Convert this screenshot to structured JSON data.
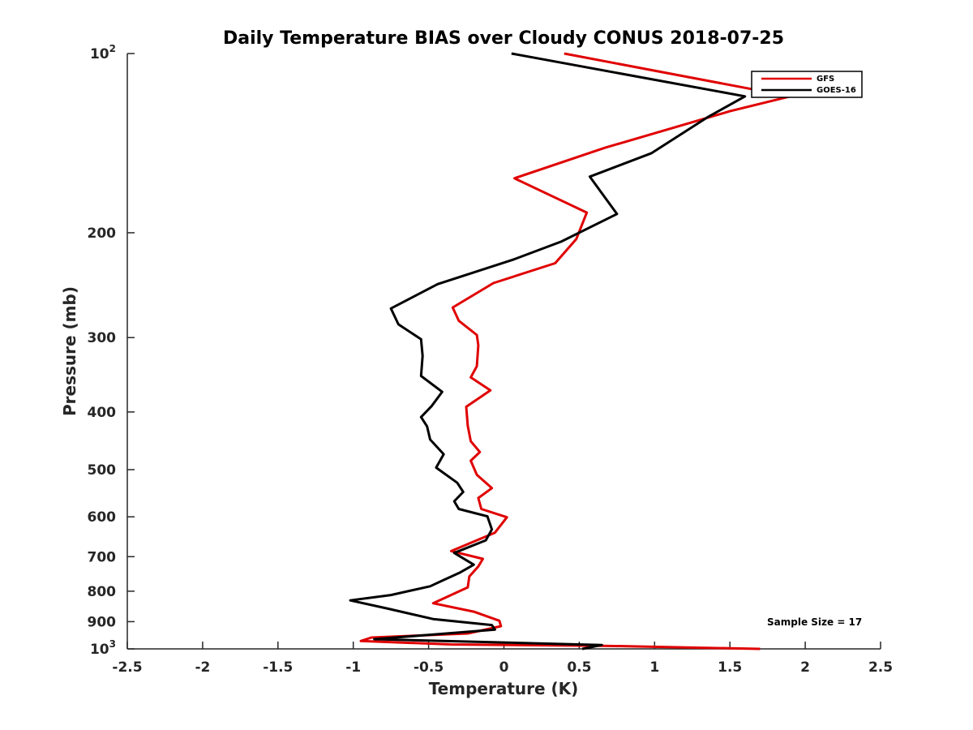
{
  "chart_data": {
    "type": "line",
    "title": "Daily Temperature BIAS over Cloudy CONUS 2018-07-25",
    "xlabel": "Temperature (K)",
    "ylabel": "Pressure (mb)",
    "xlim": [
      -2.5,
      2.5
    ],
    "ylim": [
      100,
      1000
    ],
    "y_scale": "log",
    "y_reversed": true,
    "grid": false,
    "legend_position": "top-right",
    "x_ticks": [
      {
        "value": -2.5,
        "label": "-2.5"
      },
      {
        "value": -2,
        "label": "-2"
      },
      {
        "value": -1.5,
        "label": "-1.5"
      },
      {
        "value": -1,
        "label": "-1"
      },
      {
        "value": -0.5,
        "label": "-0.5"
      },
      {
        "value": 0,
        "label": "0"
      },
      {
        "value": 0.5,
        "label": "0.5"
      },
      {
        "value": 1,
        "label": "1"
      },
      {
        "value": 1.5,
        "label": "1.5"
      },
      {
        "value": 2,
        "label": "2"
      },
      {
        "value": 2.5,
        "label": "2.5"
      }
    ],
    "y_ticks": [
      {
        "value": 100,
        "label": "10",
        "sup": "2"
      },
      {
        "value": 200,
        "label": "200",
        "sup": ""
      },
      {
        "value": 300,
        "label": "300",
        "sup": ""
      },
      {
        "value": 400,
        "label": "400",
        "sup": ""
      },
      {
        "value": 500,
        "label": "500",
        "sup": ""
      },
      {
        "value": 600,
        "label": "600",
        "sup": ""
      },
      {
        "value": 700,
        "label": "700",
        "sup": ""
      },
      {
        "value": 800,
        "label": "800",
        "sup": ""
      },
      {
        "value": 900,
        "label": "900",
        "sup": ""
      },
      {
        "value": 1000,
        "label": "10",
        "sup": "3"
      }
    ],
    "series": [
      {
        "name": "GFS",
        "color": "#e00000",
        "points": [
          [
            0.4,
            100
          ],
          [
            1.9,
            118
          ],
          [
            1.5,
            125
          ],
          [
            0.67,
            144
          ],
          [
            0.07,
            162
          ],
          [
            0.55,
            185
          ],
          [
            0.48,
            205
          ],
          [
            0.34,
            225
          ],
          [
            -0.07,
            243
          ],
          [
            -0.34,
            267
          ],
          [
            -0.3,
            281
          ],
          [
            -0.18,
            297
          ],
          [
            -0.17,
            309
          ],
          [
            -0.18,
            335
          ],
          [
            -0.22,
            350
          ],
          [
            -0.09,
            368
          ],
          [
            -0.25,
            392
          ],
          [
            -0.24,
            422
          ],
          [
            -0.22,
            448
          ],
          [
            -0.16,
            467
          ],
          [
            -0.22,
            483
          ],
          [
            -0.18,
            510
          ],
          [
            -0.08,
            537
          ],
          [
            -0.17,
            558
          ],
          [
            -0.15,
            582
          ],
          [
            0.02,
            601
          ],
          [
            -0.06,
            638
          ],
          [
            -0.35,
            685
          ],
          [
            -0.14,
            706
          ],
          [
            -0.17,
            727
          ],
          [
            -0.23,
            756
          ],
          [
            -0.24,
            788
          ],
          [
            -0.47,
            838
          ],
          [
            -0.2,
            866
          ],
          [
            -0.03,
            897
          ],
          [
            -0.02,
            916
          ],
          [
            -0.24,
            942
          ],
          [
            -0.88,
            957
          ],
          [
            -0.95,
            970
          ],
          [
            -0.35,
            983
          ],
          [
            0.66,
            988
          ],
          [
            1.7,
            1000
          ]
        ]
      },
      {
        "name": "GOES-16",
        "color": "#000000",
        "points": [
          [
            0.05,
            100
          ],
          [
            1.6,
            118
          ],
          [
            1.35,
            128
          ],
          [
            0.98,
            147
          ],
          [
            0.57,
            161
          ],
          [
            0.75,
            186
          ],
          [
            0.38,
            207
          ],
          [
            0.06,
            222
          ],
          [
            -0.44,
            244
          ],
          [
            -0.75,
            268
          ],
          [
            -0.7,
            285
          ],
          [
            -0.55,
            302
          ],
          [
            -0.54,
            322
          ],
          [
            -0.55,
            348
          ],
          [
            -0.41,
            370
          ],
          [
            -0.48,
            391
          ],
          [
            -0.55,
            408
          ],
          [
            -0.51,
            423
          ],
          [
            -0.49,
            445
          ],
          [
            -0.4,
            471
          ],
          [
            -0.45,
            496
          ],
          [
            -0.31,
            526
          ],
          [
            -0.27,
            545
          ],
          [
            -0.33,
            565
          ],
          [
            -0.3,
            582
          ],
          [
            -0.11,
            599
          ],
          [
            -0.08,
            630
          ],
          [
            -0.12,
            657
          ],
          [
            -0.33,
            690
          ],
          [
            -0.2,
            722
          ],
          [
            -0.29,
            744
          ],
          [
            -0.42,
            770
          ],
          [
            -0.49,
            785
          ],
          [
            -0.75,
            812
          ],
          [
            -1.02,
            829
          ],
          [
            -0.77,
            856
          ],
          [
            -0.47,
            891
          ],
          [
            -0.08,
            912
          ],
          [
            -0.06,
            928
          ],
          [
            -0.86,
            963
          ],
          [
            0.65,
            985
          ],
          [
            0.52,
            1000
          ]
        ]
      }
    ],
    "annotation": "Sample Size = 17"
  }
}
